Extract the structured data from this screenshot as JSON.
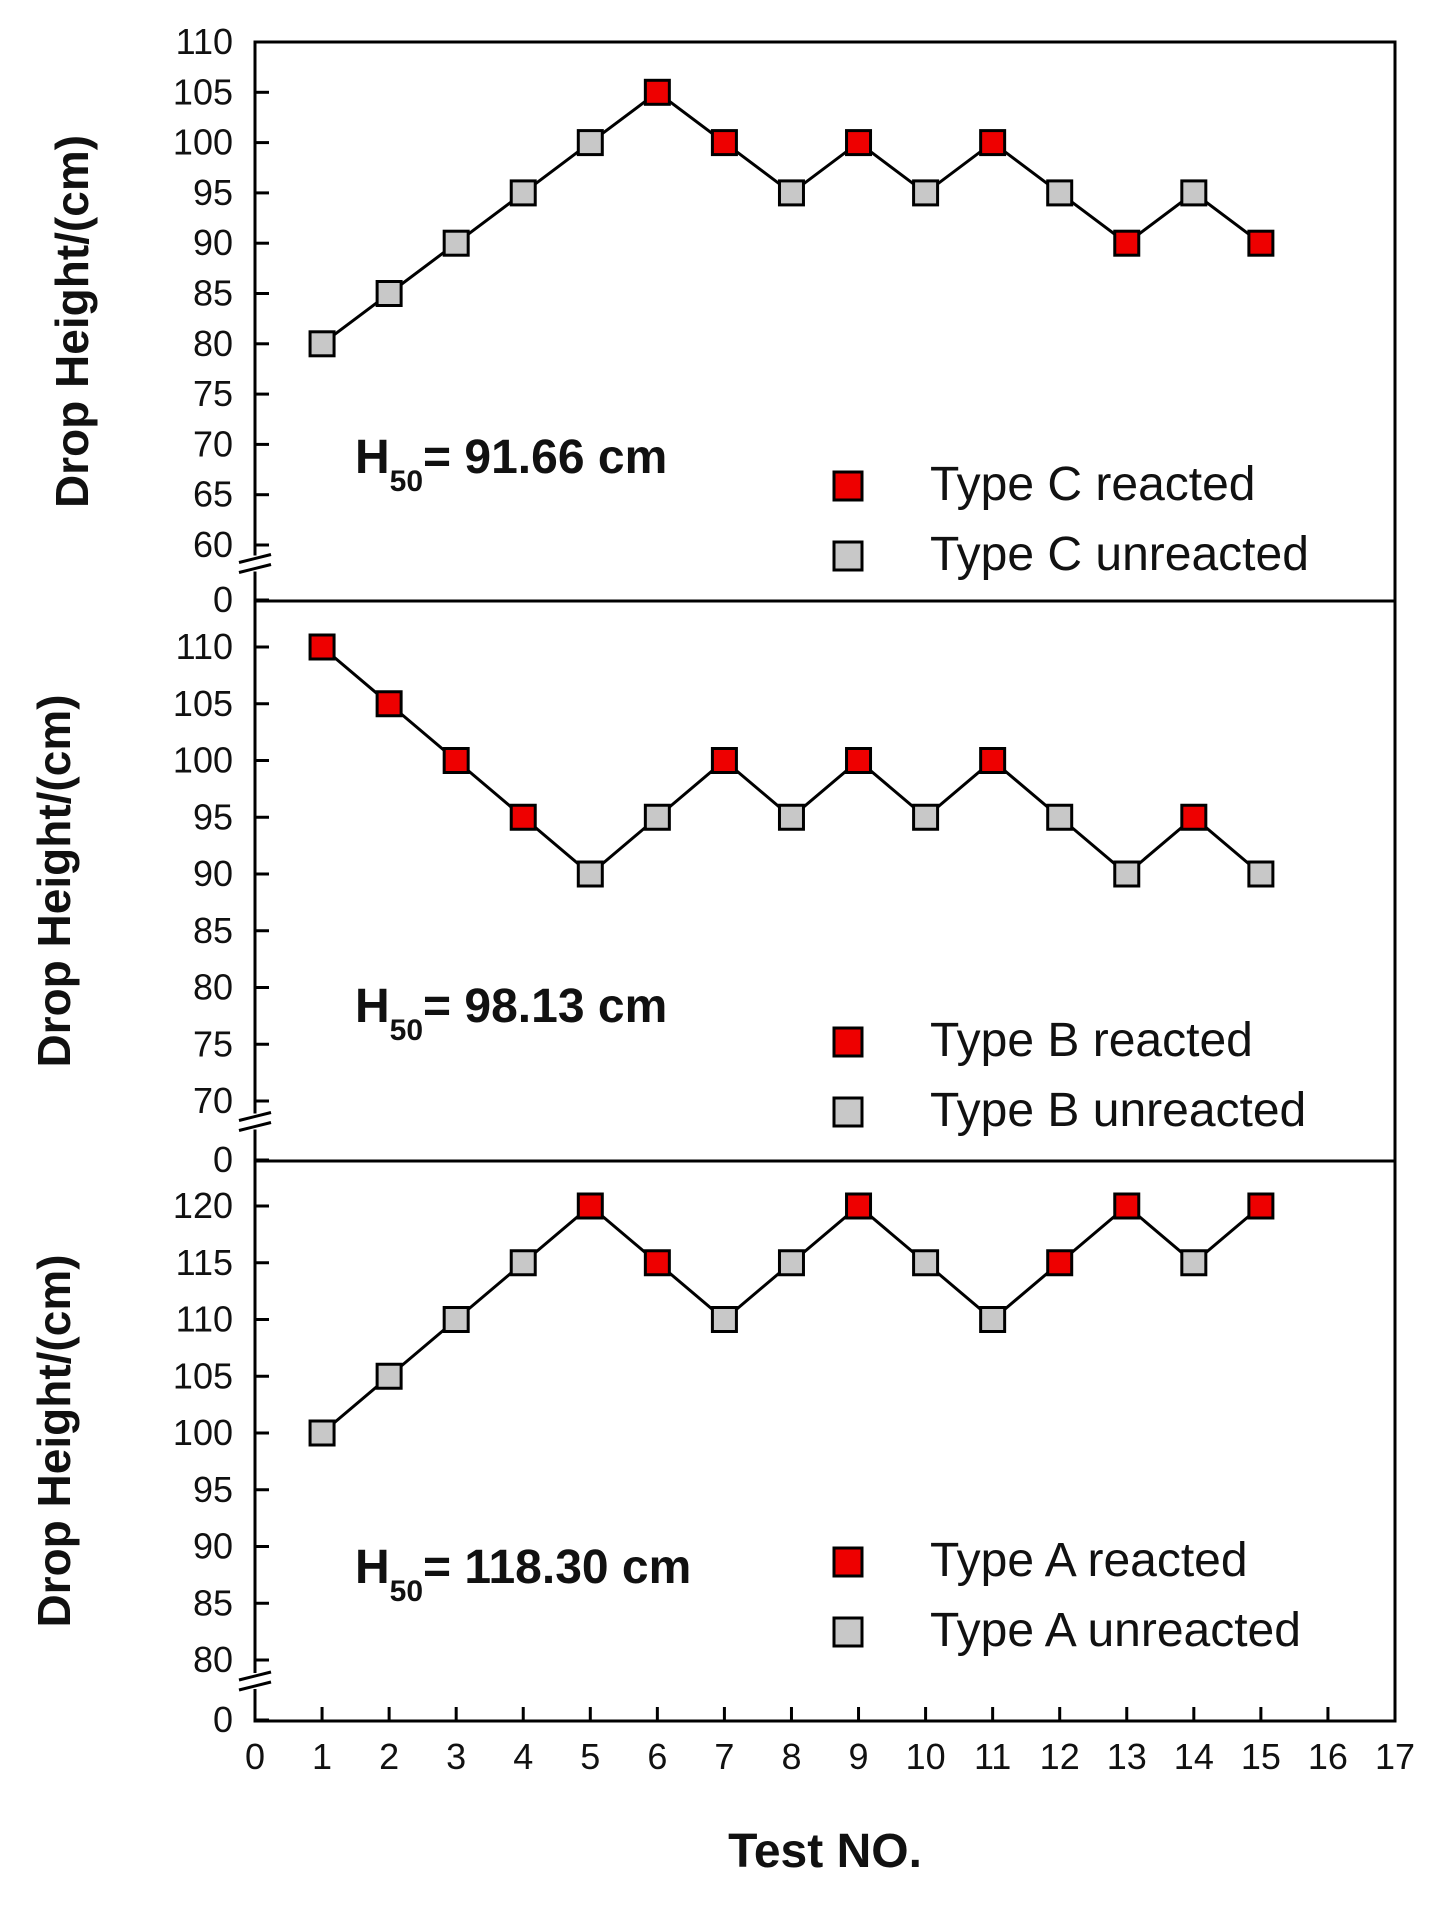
{
  "chart_data": [
    {
      "type": "line",
      "panel": "Type C",
      "ylabel": "Drop Height/(cm)",
      "ylim": [
        60,
        110
      ],
      "y_ticks": [
        "110",
        "105",
        "100",
        "95",
        "90",
        "85",
        "80",
        "75",
        "70",
        "65",
        "60"
      ],
      "axis_break_label": "0",
      "h50_prefix": "H",
      "h50_sub": "50",
      "h50_value": "= 91.66 cm",
      "x": [
        1,
        2,
        3,
        4,
        5,
        6,
        7,
        8,
        9,
        10,
        11,
        12,
        13,
        14,
        15
      ],
      "y": [
        80,
        85,
        90,
        95,
        100,
        105,
        100,
        95,
        100,
        95,
        100,
        95,
        90,
        95,
        90
      ],
      "status": [
        "u",
        "u",
        "u",
        "u",
        "u",
        "r",
        "r",
        "u",
        "r",
        "u",
        "r",
        "u",
        "r",
        "u",
        "r"
      ],
      "legend": {
        "reacted": "Type C reacted",
        "unreacted": "Type C unreacted"
      }
    },
    {
      "type": "line",
      "panel": "Type B",
      "ylabel": "Drop Height/(cm)",
      "ylim": [
        70,
        110
      ],
      "y_ticks": [
        "110",
        "105",
        "100",
        "95",
        "90",
        "85",
        "80",
        "75",
        "70"
      ],
      "axis_break_label": "0",
      "h50_prefix": "H",
      "h50_sub": "50",
      "h50_value": "= 98.13 cm",
      "x": [
        1,
        2,
        3,
        4,
        5,
        6,
        7,
        8,
        9,
        10,
        11,
        12,
        13,
        14,
        15
      ],
      "y": [
        110,
        105,
        100,
        95,
        90,
        95,
        100,
        95,
        100,
        95,
        100,
        95,
        90,
        95,
        90
      ],
      "status": [
        "r",
        "r",
        "r",
        "r",
        "u",
        "u",
        "r",
        "u",
        "r",
        "u",
        "r",
        "u",
        "u",
        "r",
        "u"
      ],
      "legend": {
        "reacted": "Type B reacted",
        "unreacted": "Type B unreacted"
      }
    },
    {
      "type": "line",
      "panel": "Type A",
      "ylabel": "Drop Height/(cm)",
      "ylim": [
        80,
        120
      ],
      "y_ticks": [
        "120",
        "115",
        "110",
        "105",
        "100",
        "95",
        "90",
        "85",
        "80"
      ],
      "axis_break_label": "0",
      "h50_prefix": "H",
      "h50_sub": "50",
      "h50_value": "= 118.30 cm",
      "x": [
        1,
        2,
        3,
        4,
        5,
        6,
        7,
        8,
        9,
        10,
        11,
        12,
        13,
        14,
        15
      ],
      "y": [
        100,
        105,
        110,
        115,
        120,
        115,
        110,
        115,
        120,
        115,
        110,
        115,
        120,
        115,
        120
      ],
      "status": [
        "u",
        "u",
        "u",
        "u",
        "r",
        "r",
        "u",
        "u",
        "r",
        "u",
        "u",
        "r",
        "r",
        "u",
        "r"
      ],
      "legend": {
        "reacted": "Type A reacted",
        "unreacted": "Type A unreacted"
      }
    }
  ],
  "x_axis": {
    "label": "Test NO.",
    "xlim": [
      0,
      17
    ],
    "ticks": [
      "0",
      "1",
      "2",
      "3",
      "4",
      "5",
      "6",
      "7",
      "8",
      "9",
      "10",
      "11",
      "12",
      "13",
      "14",
      "15",
      "16",
      "17"
    ]
  },
  "colors": {
    "reacted": "#ee0000",
    "unreacted": "#c8c8c8",
    "line": "#000000"
  }
}
